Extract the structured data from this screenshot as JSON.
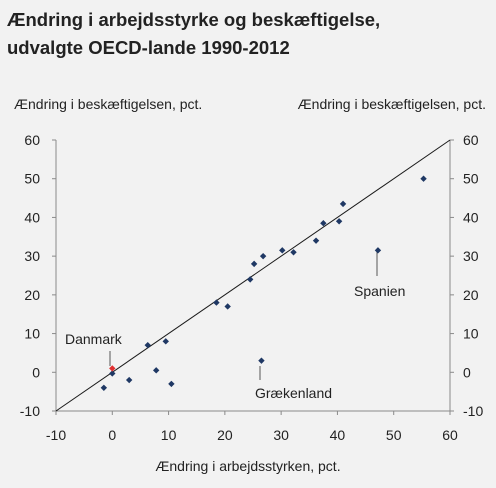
{
  "chart_data": {
    "type": "scatter",
    "title": {
      "line1": "Ændring i arbejdsstyrke og beskæftigelse,",
      "line2": "udvalgte OECD-lande 1990-2012"
    },
    "ylabel_left": "Ændring i beskæftigelsen, pct.",
    "ylabel_right": "Ændring i beskæftigelsen, pct.",
    "xlabel": "Ændring i arbejdsstyrken, pct.",
    "xlim": [
      -10,
      60
    ],
    "ylim": [
      -10,
      60
    ],
    "xticks": [
      "-10",
      "0",
      "10",
      "20",
      "30",
      "40",
      "50",
      "60"
    ],
    "yticks": [
      "60",
      "50",
      "40",
      "30",
      "20",
      "10",
      "0",
      "-10"
    ],
    "grid": false,
    "reference_line": {
      "from": [
        -10,
        -10
      ],
      "to": [
        60,
        60
      ]
    },
    "colors": {
      "points": "#1f3864",
      "highlight": "#e03030",
      "line": "#1a1a1a",
      "background": "#f2f2f2"
    },
    "points": [
      {
        "x": -1.5,
        "y": -4
      },
      {
        "x": 0,
        "y": -0.3
      },
      {
        "x": 3,
        "y": -2
      },
      {
        "x": 6.3,
        "y": 7
      },
      {
        "x": 7.8,
        "y": 0.5
      },
      {
        "x": 9.5,
        "y": 8
      },
      {
        "x": 10.5,
        "y": -3
      },
      {
        "x": 18.5,
        "y": 18
      },
      {
        "x": 20.5,
        "y": 17
      },
      {
        "x": 24.5,
        "y": 24
      },
      {
        "x": 25.2,
        "y": 28
      },
      {
        "x": 26.8,
        "y": 30
      },
      {
        "x": 30.2,
        "y": 31.5
      },
      {
        "x": 32.2,
        "y": 31
      },
      {
        "x": 36.2,
        "y": 34
      },
      {
        "x": 37.5,
        "y": 38.5
      },
      {
        "x": 40.3,
        "y": 39
      },
      {
        "x": 41,
        "y": 43.5
      },
      {
        "x": 55.3,
        "y": 50
      },
      {
        "x": 26.5,
        "y": 3,
        "label": "Grækenland"
      },
      {
        "x": 47.2,
        "y": 31.5,
        "label": "Spanien"
      },
      {
        "x": 0,
        "y": 1,
        "label": "Danmark",
        "highlight": true
      }
    ]
  }
}
